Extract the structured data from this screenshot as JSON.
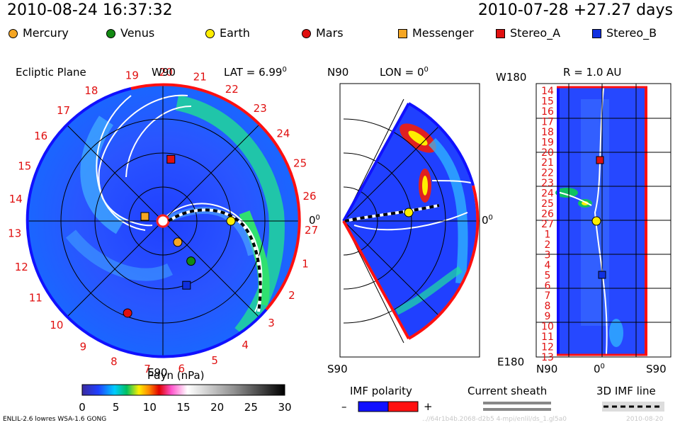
{
  "header": {
    "datetime": "2010-08-24 16:37:32",
    "reference": "2010-07-28 +27.27 days"
  },
  "legend": [
    {
      "name": "Mercury",
      "color": "#f5a623",
      "shape": "circle"
    },
    {
      "name": "Venus",
      "color": "#138a13",
      "shape": "circle"
    },
    {
      "name": "Earth",
      "color": "#ffee00",
      "shape": "circle"
    },
    {
      "name": "Mars",
      "color": "#e01010",
      "shape": "circle"
    },
    {
      "name": "Messenger",
      "color": "#f5a623",
      "shape": "square"
    },
    {
      "name": "Stereo_A",
      "color": "#e01010",
      "shape": "square"
    },
    {
      "name": "Stereo_B",
      "color": "#1030e0",
      "shape": "square"
    }
  ],
  "panels": {
    "ecliptic": {
      "title": "Ecliptic Plane",
      "w_label": "W90",
      "e_label": "E90",
      "lat_label": "LAT = 6.99",
      "lat_sup": "0",
      "zero_label": "0",
      "zero_sup": "0"
    },
    "meridional": {
      "n_label": "N90",
      "s_label": "S90",
      "lon_label": "LON = 0",
      "lon_sup": "0",
      "zero_label": "0",
      "zero_sup": "0"
    },
    "radial": {
      "w_label": "W180",
      "e_label": "E180",
      "r_label": "R = 1.0 AU",
      "x_left": "N90",
      "x_mid": "0",
      "x_mid_sup": "0",
      "x_right": "S90"
    }
  },
  "chart_data": {
    "type": "heatmap",
    "quantity": "Pdyn (nPa)",
    "colorbar": {
      "title": "Pdyn (nPa)",
      "range": [
        0,
        30
      ],
      "ticks": [
        "0",
        "5",
        "10",
        "15",
        "20",
        "25",
        "30"
      ]
    },
    "ecliptic_rotation_labels": [
      "19",
      "20",
      "21",
      "22",
      "23",
      "24",
      "25",
      "26",
      "27",
      "1",
      "2",
      "3",
      "4",
      "5",
      "6",
      "7",
      "8",
      "9",
      "10",
      "11",
      "12",
      "13",
      "14",
      "15",
      "16",
      "17",
      "18"
    ],
    "radial_rotation_labels": [
      "14",
      "15",
      "16",
      "17",
      "18",
      "19",
      "20",
      "21",
      "22",
      "23",
      "24",
      "25",
      "26",
      "27",
      "1",
      "2",
      "3",
      "4",
      "5",
      "6",
      "7",
      "8",
      "9",
      "10",
      "11",
      "12",
      "13"
    ],
    "bodies": [
      {
        "name": "Mercury",
        "r_au": 0.38,
        "lon_deg": -55
      },
      {
        "name": "Venus",
        "r_au": 0.72,
        "lon_deg": -55
      },
      {
        "name": "Earth",
        "r_au": 1.0,
        "lon_deg": 0
      },
      {
        "name": "Mars",
        "r_au": 1.45,
        "lon_deg": -111
      },
      {
        "name": "Messenger",
        "r_au": 0.28,
        "lon_deg": 165
      },
      {
        "name": "Stereo_A",
        "r_au": 0.92,
        "lon_deg": 83
      },
      {
        "name": "Stereo_B",
        "r_au": 1.0,
        "lon_deg": -70
      }
    ]
  },
  "bottom": {
    "imf_title": "IMF polarity",
    "imf_minus": "–",
    "imf_plus": "+",
    "sheath_title": "Current sheath",
    "imf3d_title": "3D IMF line",
    "model_info": "ENLIL-2.6 lowres WSA-1.6 GONG",
    "run_id": "..//64r1b4b.2068-d2b5 4-mpi/enlil/ds_1.gl5a0",
    "run_date": "2010-08-20"
  }
}
